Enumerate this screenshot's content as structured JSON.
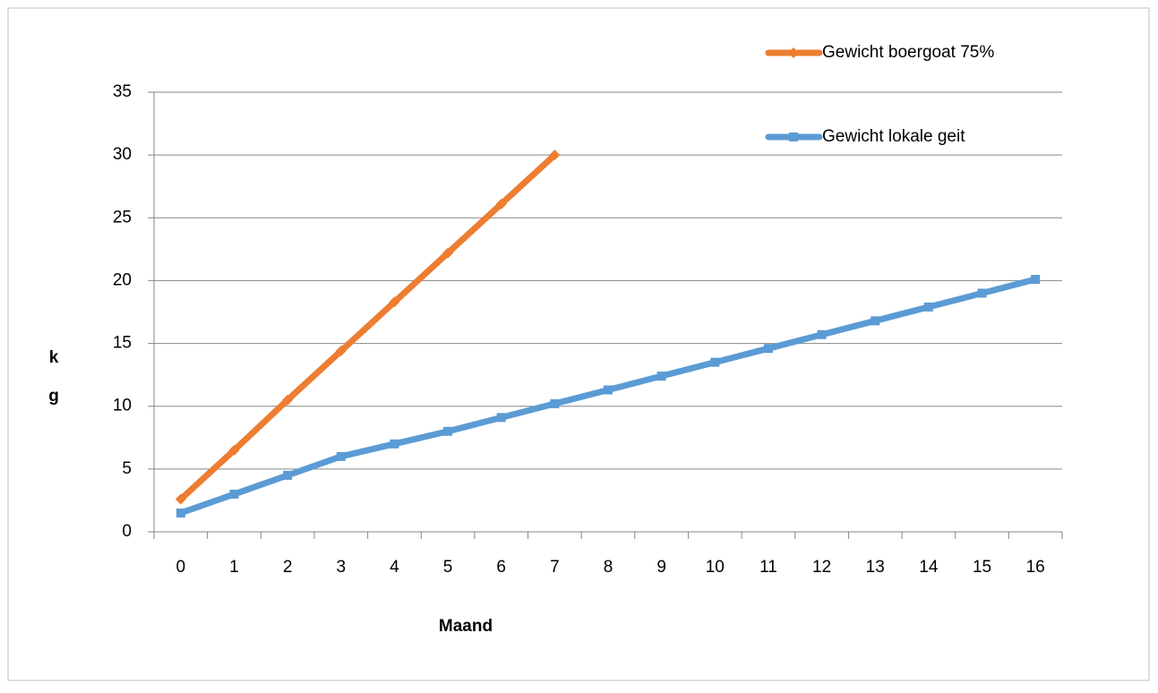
{
  "chart_data": {
    "type": "line",
    "x_label": "Maand",
    "y_label": "kg",
    "categories": [
      "0",
      "1",
      "2",
      "3",
      "4",
      "5",
      "6",
      "7",
      "8",
      "9",
      "10",
      "11",
      "12",
      "13",
      "14",
      "15",
      "16"
    ],
    "series": [
      {
        "name": "Gewicht boergoat 75%",
        "color": "#ed7d31",
        "marker": "diamond",
        "values": [
          2.6,
          6.5,
          10.5,
          14.4,
          18.3,
          22.2,
          26.1,
          30,
          null,
          null,
          null,
          null,
          null,
          null,
          null,
          null,
          null
        ]
      },
      {
        "name": "Gewicht lokale geit",
        "color": "#5b9bd5",
        "marker": "square",
        "values": [
          1.5,
          3,
          4.5,
          6,
          7,
          8,
          9.1,
          10.2,
          11.3,
          12.4,
          13.5,
          14.6,
          15.7,
          16.8,
          17.9,
          19,
          20.1
        ]
      }
    ],
    "ylim": [
      0,
      35
    ],
    "yticks": [
      0,
      5,
      10,
      15,
      20,
      25,
      30,
      35
    ],
    "grid": true,
    "legend": "top-right"
  }
}
